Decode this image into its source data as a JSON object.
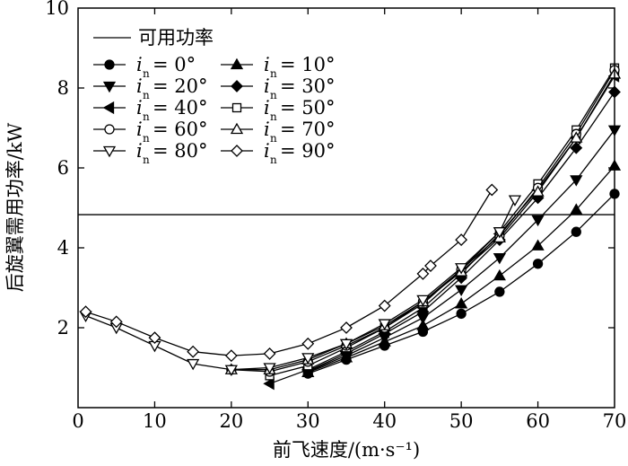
{
  "chart_data": {
    "type": "line",
    "xlabel": "前飞速度/(m·s⁻¹)",
    "ylabel": "后旋翼需用功率/kW",
    "xlim": [
      0,
      70
    ],
    "ylim": [
      0,
      10
    ],
    "xticks": [
      "0",
      "10",
      "20",
      "30",
      "40",
      "50",
      "60",
      "70"
    ],
    "yticks": [
      "2",
      "4",
      "6",
      "8",
      "10"
    ],
    "available_power": {
      "name": "可用功率",
      "value": 4.83
    },
    "legend": {
      "var": "i",
      "sub": "n",
      "entries": [
        {
          "name": "i_n = 0°",
          "angle": "= 0°",
          "marker": "circle-filled"
        },
        {
          "name": "i_n = 10°",
          "angle": "= 10°",
          "marker": "triangle-up-filled"
        },
        {
          "name": "i_n = 20°",
          "angle": "= 20°",
          "marker": "triangle-down-filled"
        },
        {
          "name": "i_n = 30°",
          "angle": "= 30°",
          "marker": "diamond-filled"
        },
        {
          "name": "i_n = 40°",
          "angle": "= 40°",
          "marker": "triangle-left-filled"
        },
        {
          "name": "i_n = 50°",
          "angle": "= 50°",
          "marker": "square-open"
        },
        {
          "name": "i_n = 60°",
          "angle": "= 60°",
          "marker": "circle-open"
        },
        {
          "name": "i_n = 70°",
          "angle": "= 70°",
          "marker": "triangle-up-open"
        },
        {
          "name": "i_n = 80°",
          "angle": "= 80°",
          "marker": "triangle-down-open"
        },
        {
          "name": "i_n = 90°",
          "angle": "= 90°",
          "marker": "diamond-open"
        }
      ]
    },
    "series": [
      {
        "name": "i_n = 0°",
        "marker": "circle-filled",
        "x": [
          30,
          35,
          40,
          45,
          50,
          55,
          60,
          65,
          70
        ],
        "y": [
          0.85,
          1.2,
          1.55,
          1.9,
          2.35,
          2.9,
          3.6,
          4.4,
          5.35
        ]
      },
      {
        "name": "i_n = 10°",
        "marker": "triangle-up-filled",
        "x": [
          30,
          35,
          40,
          45,
          50,
          55,
          60,
          65,
          70
        ],
        "y": [
          0.88,
          1.25,
          1.65,
          2.05,
          2.6,
          3.3,
          4.05,
          4.95,
          6.05
        ]
      },
      {
        "name": "i_n = 20°",
        "marker": "triangle-down-filled",
        "x": [
          30,
          35,
          40,
          45,
          50,
          55,
          60,
          65,
          70
        ],
        "y": [
          0.9,
          1.3,
          1.75,
          2.25,
          2.95,
          3.75,
          4.7,
          5.7,
          6.95
        ]
      },
      {
        "name": "i_n = 30°",
        "marker": "diamond-filled",
        "x": [
          30,
          35,
          40,
          45,
          50,
          55,
          60,
          65,
          70
        ],
        "y": [
          0.92,
          1.35,
          1.85,
          2.4,
          3.25,
          4.2,
          5.25,
          6.5,
          7.9
        ]
      },
      {
        "name": "i_n = 40°",
        "marker": "triangle-left-filled",
        "x": [
          25,
          30,
          35,
          40,
          45,
          50,
          55,
          60,
          65,
          70
        ],
        "y": [
          0.6,
          0.95,
          1.4,
          1.9,
          2.5,
          3.35,
          4.35,
          5.45,
          6.75,
          8.3
        ]
      },
      {
        "name": "i_n = 50°",
        "marker": "square-open",
        "x": [
          25,
          30,
          35,
          40,
          45,
          50,
          55,
          60,
          65,
          70
        ],
        "y": [
          0.8,
          1.05,
          1.5,
          2.0,
          2.6,
          3.45,
          4.4,
          5.6,
          6.95,
          8.5
        ]
      },
      {
        "name": "i_n = 60°",
        "marker": "circle-open",
        "x": [
          20,
          25,
          30,
          35,
          40,
          45,
          50,
          55,
          60,
          65,
          70
        ],
        "y": [
          0.95,
          0.9,
          1.15,
          1.55,
          2.0,
          2.65,
          3.45,
          4.3,
          5.5,
          6.85,
          8.45
        ]
      },
      {
        "name": "i_n = 70°",
        "marker": "triangle-up-open",
        "x": [
          20,
          25,
          30,
          35,
          40,
          45,
          50,
          55,
          60,
          65,
          70
        ],
        "y": [
          0.95,
          0.95,
          1.2,
          1.6,
          2.05,
          2.65,
          3.4,
          4.25,
          5.4,
          6.75,
          8.35
        ]
      },
      {
        "name": "i_n = 80°",
        "marker": "triangle-down-open",
        "x": [
          1,
          5,
          10,
          15,
          20,
          25,
          30,
          35,
          40,
          45,
          50,
          55,
          57
        ],
        "y": [
          2.3,
          2.0,
          1.55,
          1.1,
          0.95,
          1.0,
          1.25,
          1.6,
          2.1,
          2.7,
          3.5,
          4.4,
          5.2
        ]
      },
      {
        "name": "i_n = 90°",
        "marker": "diamond-open",
        "x": [
          1,
          5,
          10,
          15,
          20,
          25,
          30,
          35,
          40,
          45,
          46,
          50,
          54
        ],
        "y": [
          2.4,
          2.15,
          1.75,
          1.4,
          1.3,
          1.35,
          1.6,
          2.0,
          2.55,
          3.35,
          3.55,
          4.2,
          5.45
        ]
      }
    ]
  }
}
